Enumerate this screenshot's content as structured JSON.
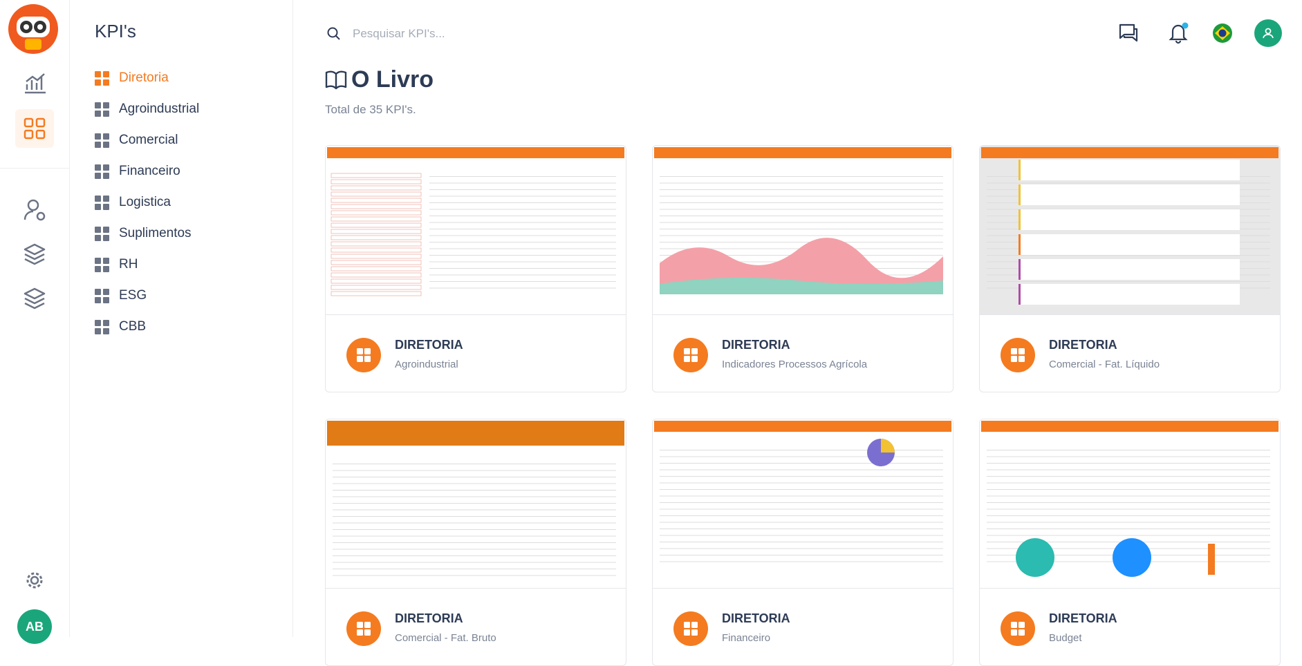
{
  "sidebar": {
    "title": "KPI's",
    "items": [
      "Diretoria",
      "Agroindustrial",
      "Comercial",
      "Financeiro",
      "Logistica",
      "Suplimentos",
      "RH",
      "ESG",
      "CBB"
    ],
    "active": 0
  },
  "search": {
    "placeholder": "Pesquisar KPI's..."
  },
  "header": {
    "title": "O Livro",
    "subtitle": "Total de 35 KPI's."
  },
  "user": {
    "initials": "AB"
  },
  "cards": [
    {
      "title": "DIRETORIA",
      "subtitle": "Agroindustrial"
    },
    {
      "title": "DIRETORIA",
      "subtitle": "Indicadores Processos Agrícola"
    },
    {
      "title": "DIRETORIA",
      "subtitle": "Comercial - Fat. Líquido"
    },
    {
      "title": "DIRETORIA",
      "subtitle": "Comercial - Fat. Bruto"
    },
    {
      "title": "DIRETORIA",
      "subtitle": "Financeiro"
    },
    {
      "title": "DIRETORIA",
      "subtitle": "Budget"
    }
  ]
}
